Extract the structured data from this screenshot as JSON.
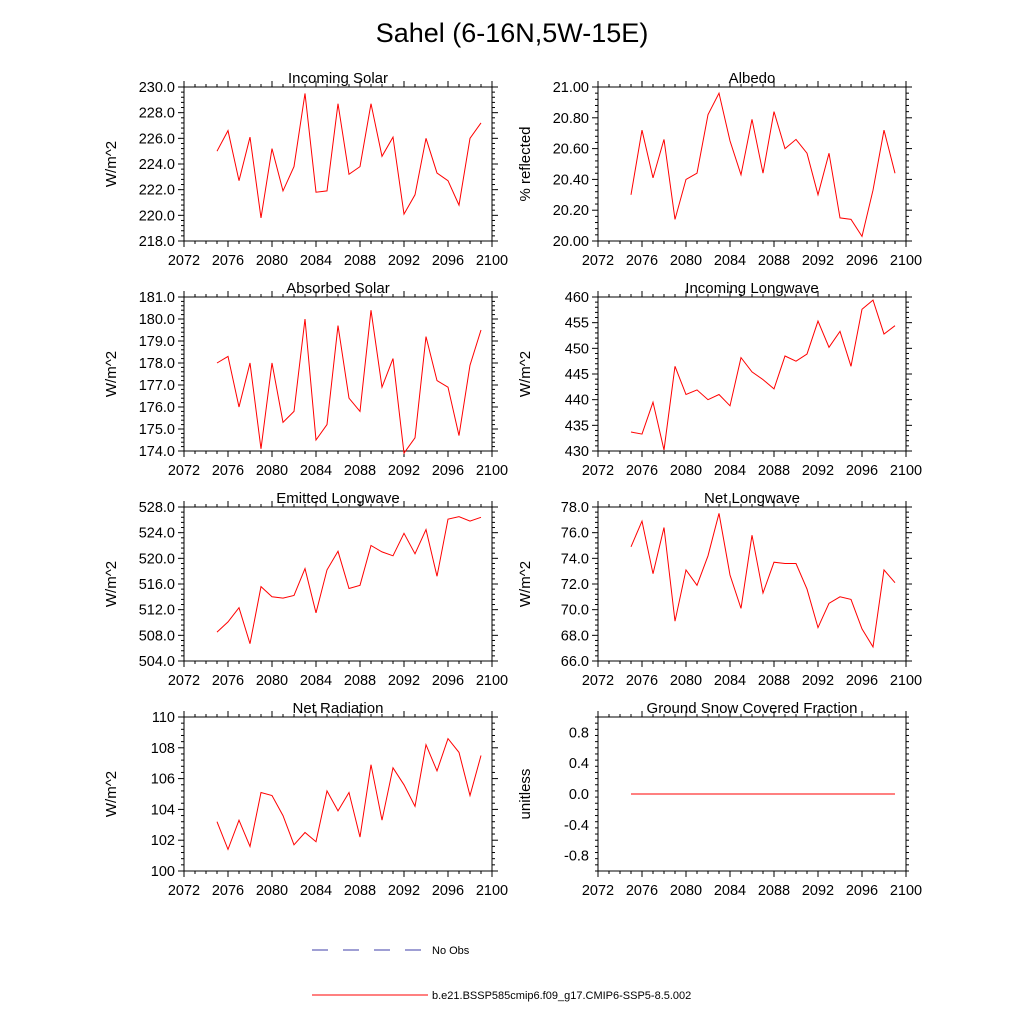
{
  "figure_title": "Sahel (6-16N,5W-15E)",
  "legend": [
    {
      "label": "No Obs",
      "color": "#3f3fa8",
      "style": "dashed"
    },
    {
      "label": "b.e21.BSSP585cmip6.f09_g17.CMIP6-SSP5-8.5.002",
      "color": "#ff0000",
      "style": "solid"
    }
  ],
  "chart_data": [
    {
      "type": "line",
      "title": "Incoming Solar",
      "ylabel": "W/m^2",
      "xlim": [
        2072,
        2100
      ],
      "ylim": [
        218,
        230
      ],
      "xticks": [
        "2072",
        "2076",
        "2080",
        "2084",
        "2088",
        "2092",
        "2096",
        "2100"
      ],
      "yticks": [
        "218.0",
        "220.0",
        "222.0",
        "224.0",
        "226.0",
        "228.0",
        "230.0"
      ],
      "x": [
        2075,
        2076,
        2077,
        2078,
        2079,
        2080,
        2081,
        2082,
        2083,
        2084,
        2085,
        2086,
        2087,
        2088,
        2089,
        2090,
        2091,
        2092,
        2093,
        2094,
        2095,
        2096,
        2097,
        2098,
        2099
      ],
      "series": [
        {
          "color": "#ff0000",
          "values": [
            225.0,
            226.6,
            222.7,
            226.1,
            219.8,
            225.2,
            221.9,
            223.8,
            229.5,
            221.8,
            221.9,
            228.7,
            223.2,
            223.8,
            228.7,
            224.6,
            226.1,
            220.1,
            221.6,
            226.0,
            223.3,
            222.7,
            220.8,
            226.0,
            227.2
          ]
        }
      ]
    },
    {
      "type": "line",
      "title": "Albedo",
      "ylabel": "% reflected",
      "xlim": [
        2072,
        2100
      ],
      "ylim": [
        20,
        21
      ],
      "xticks": [
        "2072",
        "2076",
        "2080",
        "2084",
        "2088",
        "2092",
        "2096",
        "2100"
      ],
      "yticks": [
        "20.00",
        "20.20",
        "20.40",
        "20.60",
        "20.80",
        "21.00"
      ],
      "x": [
        2075,
        2076,
        2077,
        2078,
        2079,
        2080,
        2081,
        2082,
        2083,
        2084,
        2085,
        2086,
        2087,
        2088,
        2089,
        2090,
        2091,
        2092,
        2093,
        2094,
        2095,
        2096,
        2097,
        2098,
        2099
      ],
      "series": [
        {
          "color": "#ff0000",
          "values": [
            20.3,
            20.72,
            20.41,
            20.66,
            20.14,
            20.4,
            20.44,
            20.82,
            20.96,
            20.65,
            20.43,
            20.79,
            20.44,
            20.84,
            20.6,
            20.66,
            20.57,
            20.3,
            20.57,
            20.15,
            20.14,
            20.03,
            20.33,
            20.72,
            20.44
          ]
        }
      ]
    },
    {
      "type": "line",
      "title": "Absorbed Solar",
      "ylabel": "W/m^2",
      "xlim": [
        2072,
        2100
      ],
      "ylim": [
        174,
        181
      ],
      "xticks": [
        "2072",
        "2076",
        "2080",
        "2084",
        "2088",
        "2092",
        "2096",
        "2100"
      ],
      "yticks": [
        "174.0",
        "175.0",
        "176.0",
        "177.0",
        "178.0",
        "179.0",
        "180.0",
        "181.0"
      ],
      "x": [
        2075,
        2076,
        2077,
        2078,
        2079,
        2080,
        2081,
        2082,
        2083,
        2084,
        2085,
        2086,
        2087,
        2088,
        2089,
        2090,
        2091,
        2092,
        2093,
        2094,
        2095,
        2096,
        2097,
        2098,
        2099
      ],
      "series": [
        {
          "color": "#ff0000",
          "values": [
            178.0,
            178.3,
            176.0,
            178.0,
            174.1,
            178.0,
            175.3,
            175.8,
            180.0,
            174.5,
            175.2,
            179.7,
            176.4,
            175.8,
            180.4,
            176.9,
            178.2,
            173.9,
            174.6,
            179.2,
            177.2,
            176.9,
            174.7,
            177.9,
            179.5
          ]
        }
      ]
    },
    {
      "type": "line",
      "title": "Incoming Longwave",
      "ylabel": "W/m^2",
      "xlim": [
        2072,
        2100
      ],
      "ylim": [
        430,
        460
      ],
      "xticks": [
        "2072",
        "2076",
        "2080",
        "2084",
        "2088",
        "2092",
        "2096",
        "2100"
      ],
      "yticks": [
        "430",
        "435",
        "440",
        "445",
        "450",
        "455",
        "460"
      ],
      "x": [
        2075,
        2076,
        2077,
        2078,
        2079,
        2080,
        2081,
        2082,
        2083,
        2084,
        2085,
        2086,
        2087,
        2088,
        2089,
        2090,
        2091,
        2092,
        2093,
        2094,
        2095,
        2096,
        2097,
        2098,
        2099
      ],
      "series": [
        {
          "color": "#ff0000",
          "values": [
            433.7,
            433.3,
            439.5,
            430.2,
            446.5,
            441.0,
            441.9,
            440.0,
            441.0,
            438.8,
            448.2,
            445.4,
            443.9,
            442.1,
            448.5,
            447.5,
            448.9,
            455.3,
            450.2,
            453.3,
            446.5,
            457.6,
            459.4,
            452.8,
            454.4
          ]
        }
      ]
    },
    {
      "type": "line",
      "title": "Emitted Longwave",
      "ylabel": "W/m^2",
      "xlim": [
        2072,
        2100
      ],
      "ylim": [
        504,
        528
      ],
      "xticks": [
        "2072",
        "2076",
        "2080",
        "2084",
        "2088",
        "2092",
        "2096",
        "2100"
      ],
      "yticks": [
        "504.0",
        "508.0",
        "512.0",
        "516.0",
        "520.0",
        "524.0",
        "528.0"
      ],
      "x": [
        2075,
        2076,
        2077,
        2078,
        2079,
        2080,
        2081,
        2082,
        2083,
        2084,
        2085,
        2086,
        2087,
        2088,
        2089,
        2090,
        2091,
        2092,
        2093,
        2094,
        2095,
        2096,
        2097,
        2098,
        2099
      ],
      "series": [
        {
          "color": "#ff0000",
          "values": [
            508.5,
            510.1,
            512.3,
            506.7,
            515.6,
            514.0,
            513.8,
            514.2,
            518.4,
            511.5,
            518.2,
            521.1,
            515.3,
            515.8,
            522.0,
            521.0,
            520.4,
            523.9,
            520.7,
            524.5,
            517.2,
            526.1,
            526.5,
            525.8,
            526.4
          ]
        }
      ]
    },
    {
      "type": "line",
      "title": "Net Longwave",
      "ylabel": "W/m^2",
      "xlim": [
        2072,
        2100
      ],
      "ylim": [
        66,
        78
      ],
      "xticks": [
        "2072",
        "2076",
        "2080",
        "2084",
        "2088",
        "2092",
        "2096",
        "2100"
      ],
      "yticks": [
        "66.0",
        "68.0",
        "70.0",
        "72.0",
        "74.0",
        "76.0",
        "78.0"
      ],
      "x": [
        2075,
        2076,
        2077,
        2078,
        2079,
        2080,
        2081,
        2082,
        2083,
        2084,
        2085,
        2086,
        2087,
        2088,
        2089,
        2090,
        2091,
        2092,
        2093,
        2094,
        2095,
        2096,
        2097,
        2098,
        2099
      ],
      "series": [
        {
          "color": "#ff0000",
          "values": [
            74.9,
            76.9,
            72.8,
            76.4,
            69.1,
            73.1,
            71.9,
            74.2,
            77.5,
            72.7,
            70.1,
            75.8,
            71.3,
            73.7,
            73.6,
            73.6,
            71.6,
            68.6,
            70.5,
            71.0,
            70.8,
            68.5,
            67.1,
            73.1,
            72.1
          ]
        }
      ]
    },
    {
      "type": "line",
      "title": "Net Radiation",
      "ylabel": "W/m^2",
      "xlim": [
        2072,
        2100
      ],
      "ylim": [
        100,
        110
      ],
      "xticks": [
        "2072",
        "2076",
        "2080",
        "2084",
        "2088",
        "2092",
        "2096",
        "2100"
      ],
      "yticks": [
        "100",
        "102",
        "104",
        "106",
        "108",
        "110"
      ],
      "x": [
        2075,
        2076,
        2077,
        2078,
        2079,
        2080,
        2081,
        2082,
        2083,
        2084,
        2085,
        2086,
        2087,
        2088,
        2089,
        2090,
        2091,
        2092,
        2093,
        2094,
        2095,
        2096,
        2097,
        2098,
        2099
      ],
      "series": [
        {
          "color": "#ff0000",
          "values": [
            103.2,
            101.4,
            103.3,
            101.6,
            105.1,
            104.9,
            103.6,
            101.7,
            102.5,
            101.9,
            105.2,
            103.9,
            105.1,
            102.2,
            106.9,
            103.3,
            106.7,
            105.6,
            104.2,
            108.2,
            106.5,
            108.6,
            107.7,
            104.9,
            107.5
          ]
        }
      ]
    },
    {
      "type": "line",
      "title": "Ground Snow Covered Fraction",
      "ylabel": "unitless",
      "xlim": [
        2072,
        2100
      ],
      "ylim": [
        -1,
        1
      ],
      "xticks": [
        "2072",
        "2076",
        "2080",
        "2084",
        "2088",
        "2092",
        "2096",
        "2100"
      ],
      "yticks": [
        "-0.8",
        "-0.4",
        "0.0",
        "0.4",
        "0.8"
      ],
      "ytick_values": [
        -0.8,
        -0.4,
        0.0,
        0.4,
        0.8
      ],
      "x": [
        2075,
        2076,
        2077,
        2078,
        2079,
        2080,
        2081,
        2082,
        2083,
        2084,
        2085,
        2086,
        2087,
        2088,
        2089,
        2090,
        2091,
        2092,
        2093,
        2094,
        2095,
        2096,
        2097,
        2098,
        2099
      ],
      "series": [
        {
          "color": "#ff0000",
          "values": [
            0,
            0,
            0,
            0,
            0,
            0,
            0,
            0,
            0,
            0,
            0,
            0,
            0,
            0,
            0,
            0,
            0,
            0,
            0,
            0,
            0,
            0,
            0,
            0,
            0
          ]
        }
      ]
    }
  ]
}
